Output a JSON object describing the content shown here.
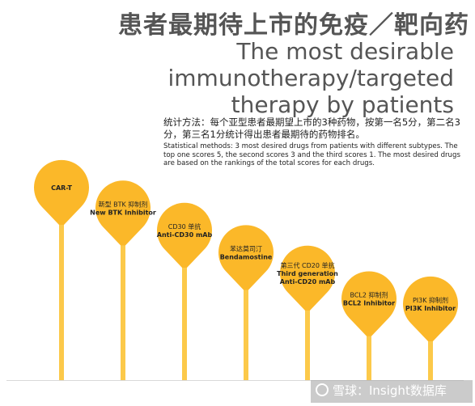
{
  "header": {
    "title_cn": "患者最期待上市的免疫／靶向药",
    "title_en_line1": "The most desirable immunotherapy/targeted",
    "title_en_line2": "therapy by patients"
  },
  "method": {
    "cn": "统计方法：每个亚型患者最期望上市的3种药物，按第一名5分，第二名3分，第三名1分统计得出患者最期待的药物排名。",
    "en": "Statistical methods: 3 most desired drugs from patients with different subtypes. The top one scores 5, the second scores 3 and the third scores 1. The most desired drugs are based on the rankings of the total scores for each drugs."
  },
  "watermark": "雪球：Insight数据库",
  "colors": {
    "balloon": "#fbb829",
    "stick": "#fcc94a",
    "title": "#555555",
    "text": "#222222"
  },
  "chart_data": {
    "type": "bar",
    "categories": [
      {
        "cn": "",
        "en": "CAR-T"
      },
      {
        "cn": "新型 BTK 抑制剂",
        "en": "New BTK Inhibitor"
      },
      {
        "cn": "CD30 单抗",
        "en": "Anti-CD30 mAb"
      },
      {
        "cn": "苯达莫司汀",
        "en": "Bendamostine"
      },
      {
        "cn": "第三代 CD20 单抗",
        "en": "Third generation Anti-CD20 mAb"
      },
      {
        "cn": "BCL2 抑制剂",
        "en": "BCL2 Inhibitor"
      },
      {
        "cn": "PI3K 抑制剂",
        "en": "PI3K Inhibitor"
      }
    ],
    "values": [
      100,
      88,
      75,
      62,
      50,
      35,
      32
    ],
    "value_scale": "relative height, arbitrary units (no axis or values printed)",
    "title": "",
    "xlabel": "",
    "ylabel": ""
  }
}
